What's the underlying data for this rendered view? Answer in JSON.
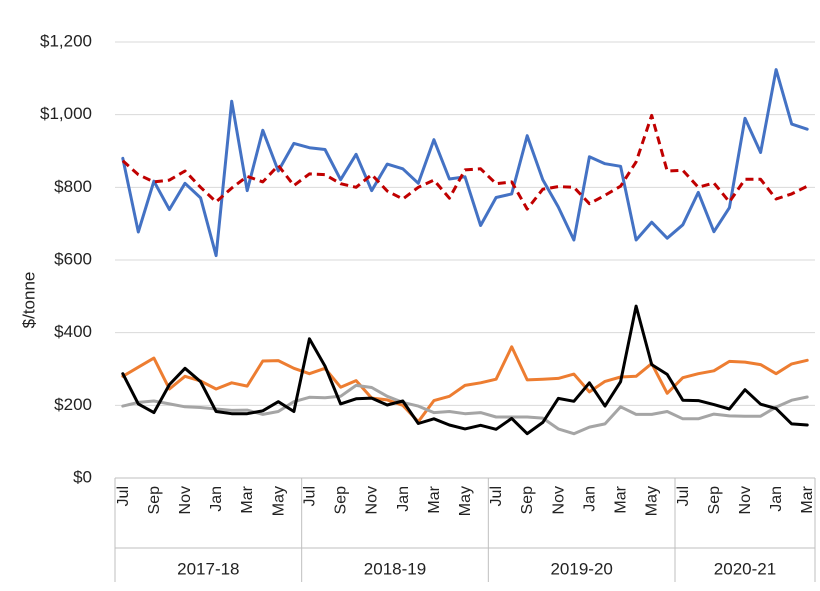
{
  "chart_data": {
    "type": "line",
    "ylabel": "$/tonne",
    "ylim": [
      0,
      1200
    ],
    "y_ticks": [
      "$0",
      "$200",
      "$400",
      "$600",
      "$800",
      "$1,000",
      "$1,200"
    ],
    "y_tick_values": [
      0,
      200,
      400,
      600,
      800,
      1000,
      1200
    ],
    "grid": "horizontal",
    "x": [
      "Jul",
      "Aug",
      "Sep",
      "Oct",
      "Nov",
      "Dec",
      "Jan",
      "Feb",
      "Mar",
      "Apr",
      "May",
      "Jun",
      "Jul",
      "Aug",
      "Sep",
      "Oct",
      "Nov",
      "Dec",
      "Jan",
      "Feb",
      "Mar",
      "Apr",
      "May",
      "Jun",
      "Jul",
      "Aug",
      "Sep",
      "Oct",
      "Nov",
      "Dec",
      "Jan",
      "Feb",
      "Mar",
      "Apr",
      "May",
      "Jun",
      "Jul",
      "Aug",
      "Sep",
      "Oct",
      "Nov",
      "Dec",
      "Jan",
      "Feb",
      "Mar"
    ],
    "x_tick_labels": [
      "Jul",
      "",
      "Sep",
      "",
      "Nov",
      "",
      "Jan",
      "",
      "Mar",
      "",
      "May",
      "",
      "Jul",
      "",
      "Sep",
      "",
      "Nov",
      "",
      "Jan",
      "",
      "Mar",
      "",
      "May",
      "",
      "Jul",
      "",
      "Sep",
      "",
      "Nov",
      "",
      "Jan",
      "",
      "Mar",
      "",
      "May",
      "",
      "Jul",
      "",
      "Sep",
      "",
      "Nov",
      "",
      "Jan",
      "",
      "Mar"
    ],
    "groups": [
      {
        "label": "2017-18",
        "count": 12
      },
      {
        "label": "2018-19",
        "count": 12
      },
      {
        "label": "2019-20",
        "count": 12
      },
      {
        "label": "2020-21",
        "count": 9
      }
    ],
    "series": [
      {
        "color": "#4472C4",
        "dash": false,
        "values": [
          880,
          677,
          817,
          739,
          811,
          771,
          612,
          1037,
          791,
          957,
          845,
          921,
          909,
          904,
          821,
          891,
          791,
          864,
          851,
          811,
          931,
          823,
          829,
          695,
          772,
          782,
          942,
          821,
          746,
          655,
          884,
          865,
          858,
          655,
          704,
          660,
          697,
          786,
          678,
          744,
          990,
          896,
          1124,
          974,
          960
        ]
      },
      {
        "color": "#C00000",
        "dash": true,
        "values": [
          873,
          835,
          815,
          820,
          845,
          800,
          760,
          798,
          830,
          815,
          860,
          805,
          837,
          835,
          810,
          800,
          835,
          790,
          768,
          800,
          820,
          770,
          848,
          851,
          810,
          815,
          740,
          795,
          802,
          800,
          755,
          778,
          803,
          870,
          998,
          845,
          847,
          800,
          812,
          760,
          822,
          822,
          768,
          782,
          803
        ]
      },
      {
        "color": "#ED7D31",
        "dash": false,
        "values": [
          280,
          305,
          330,
          245,
          280,
          267,
          245,
          262,
          253,
          322,
          323,
          302,
          287,
          302,
          250,
          268,
          220,
          215,
          200,
          155,
          213,
          225,
          255,
          262,
          272,
          361,
          270,
          272,
          274,
          286,
          237,
          266,
          278,
          280,
          315,
          233,
          276,
          287,
          295,
          321,
          319,
          312,
          287,
          314,
          324
        ]
      },
      {
        "color": "#A5A5A5",
        "dash": false,
        "values": [
          198,
          208,
          212,
          204,
          196,
          194,
          190,
          186,
          187,
          175,
          183,
          210,
          222,
          221,
          225,
          255,
          249,
          225,
          208,
          198,
          180,
          183,
          177,
          180,
          168,
          168,
          168,
          165,
          135,
          122,
          140,
          149,
          196,
          175,
          175,
          183,
          163,
          163,
          176,
          171,
          170,
          170,
          195,
          214,
          223
        ]
      },
      {
        "color": "#000000",
        "dash": false,
        "values": [
          287,
          204,
          180,
          257,
          302,
          265,
          183,
          177,
          177,
          185,
          210,
          183,
          383,
          308,
          204,
          218,
          220,
          201,
          212,
          150,
          163,
          146,
          135,
          145,
          134,
          164,
          122,
          153,
          219,
          211,
          262,
          198,
          265,
          473,
          312,
          285,
          214,
          213,
          202,
          190,
          243,
          203,
          191,
          149,
          146
        ]
      }
    ]
  }
}
